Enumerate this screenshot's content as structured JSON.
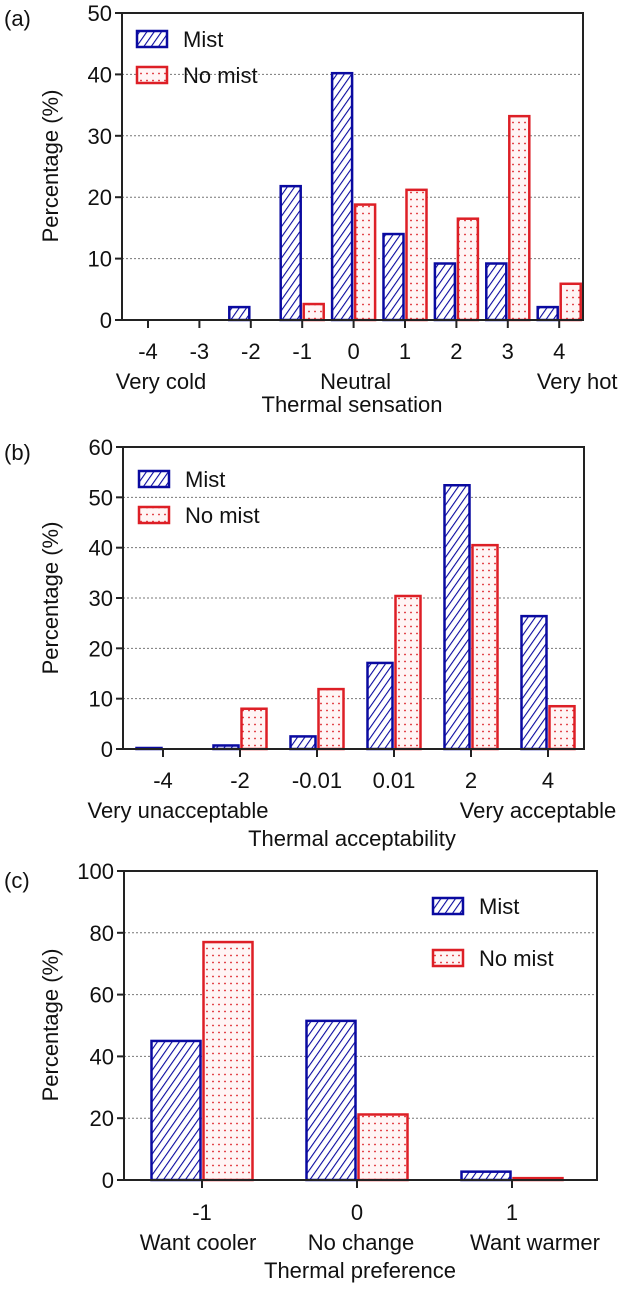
{
  "chart_data": [
    {
      "type": "bar",
      "panel_label": "(a)",
      "title": "",
      "xlabel": "Thermal sensation",
      "ylabel": "Percentage (%)",
      "ylim": [
        0,
        50
      ],
      "yticks": [
        0,
        10,
        20,
        30,
        40,
        50
      ],
      "categories": [
        "-4",
        "-3",
        "-2",
        "-1",
        "0",
        "1",
        "2",
        "3",
        "4"
      ],
      "category_annotations": [
        {
          "category": "-4",
          "text": "Very cold"
        },
        {
          "category": "0",
          "text": "Neutral"
        },
        {
          "category": "4",
          "text": "Very hot"
        }
      ],
      "grid": true,
      "legend_position": "top-left",
      "series": [
        {
          "name": "Mist",
          "color": "#0a0aa0",
          "pattern": "hatch",
          "values": [
            0,
            0,
            2.1,
            21.8,
            40.2,
            14.0,
            9.2,
            9.2,
            2.1
          ]
        },
        {
          "name": "No mist",
          "color": "#dd1f26",
          "pattern": "dots",
          "values": [
            0,
            0,
            0,
            2.6,
            18.8,
            21.2,
            16.5,
            33.2,
            5.9
          ]
        }
      ]
    },
    {
      "type": "bar",
      "panel_label": "(b)",
      "title": "",
      "xlabel": "Thermal acceptability",
      "ylabel": "Percentage (%)",
      "ylim": [
        0,
        60
      ],
      "yticks": [
        0,
        10,
        20,
        30,
        40,
        50,
        60
      ],
      "categories": [
        "-4",
        "-2",
        "-0.01",
        "0.01",
        "2",
        "4"
      ],
      "category_annotations": [
        {
          "category": "-2",
          "text": "Very unacceptable"
        },
        {
          "category": "4",
          "text": "Very acceptable"
        }
      ],
      "grid": true,
      "legend_position": "top-left",
      "series": [
        {
          "name": "Mist",
          "color": "#0a0aa0",
          "pattern": "hatch",
          "values": [
            0.2,
            0.7,
            2.5,
            17.1,
            52.4,
            26.4
          ]
        },
        {
          "name": "No mist",
          "color": "#dd1f26",
          "pattern": "dots",
          "values": [
            0,
            8.0,
            11.9,
            30.4,
            40.5,
            8.5
          ]
        }
      ]
    },
    {
      "type": "bar",
      "panel_label": "(c)",
      "title": "",
      "xlabel": "Thermal preference",
      "ylabel": "Percentage (%)",
      "ylim": [
        0,
        100
      ],
      "yticks": [
        0,
        20,
        40,
        60,
        80,
        100
      ],
      "categories": [
        "-1",
        "0",
        "1"
      ],
      "category_annotations": [
        {
          "category": "-1",
          "text": "Want cooler"
        },
        {
          "category": "0",
          "text": "No change"
        },
        {
          "category": "1",
          "text": "Want warmer"
        }
      ],
      "grid": true,
      "legend_position": "top-right",
      "series": [
        {
          "name": "Mist",
          "color": "#0a0aa0",
          "pattern": "hatch",
          "values": [
            45.0,
            51.5,
            2.7
          ]
        },
        {
          "name": "No mist",
          "color": "#dd1f26",
          "pattern": "dots",
          "values": [
            77.0,
            21.2,
            0.6
          ]
        }
      ]
    }
  ]
}
